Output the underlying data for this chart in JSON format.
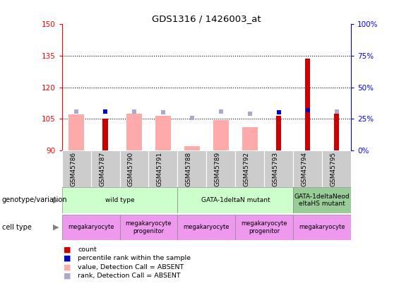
{
  "title": "GDS1316 / 1426003_at",
  "samples": [
    "GSM45786",
    "GSM45787",
    "GSM45790",
    "GSM45791",
    "GSM45788",
    "GSM45789",
    "GSM45792",
    "GSM45793",
    "GSM45794",
    "GSM45795"
  ],
  "count_values": [
    null,
    105.0,
    null,
    null,
    null,
    null,
    null,
    106.5,
    133.5,
    107.5
  ],
  "pct_rank_values": [
    null,
    108.5,
    null,
    null,
    null,
    null,
    null,
    108.0,
    109.0,
    null
  ],
  "absent_value": [
    107.0,
    null,
    107.5,
    106.5,
    92.0,
    104.5,
    101.0,
    null,
    null,
    null
  ],
  "absent_rank": [
    108.5,
    null,
    108.5,
    108.0,
    105.5,
    108.5,
    107.5,
    null,
    null,
    108.5
  ],
  "ylim": [
    90,
    150
  ],
  "yticks_left": [
    90,
    105,
    120,
    135,
    150
  ],
  "yticks_right_pct": [
    0,
    25,
    50,
    75,
    100
  ],
  "genotype_groups": [
    {
      "label": "wild type",
      "start": 0,
      "end": 4,
      "color": "#ccffcc"
    },
    {
      "label": "GATA-1deltaN mutant",
      "start": 4,
      "end": 8,
      "color": "#ccffcc"
    },
    {
      "label": "GATA-1deltaNeod\neltaHS mutant",
      "start": 8,
      "end": 10,
      "color": "#99cc99"
    }
  ],
  "cell_groups": [
    {
      "label": "megakaryocyte",
      "start": 0,
      "end": 2,
      "color": "#ee99ee"
    },
    {
      "label": "megakaryocyte\nprogenitor",
      "start": 2,
      "end": 4,
      "color": "#ee99ee"
    },
    {
      "label": "megakaryocyte",
      "start": 4,
      "end": 6,
      "color": "#ee99ee"
    },
    {
      "label": "megakaryocyte\nprogenitor",
      "start": 6,
      "end": 8,
      "color": "#ee99ee"
    },
    {
      "label": "megakaryocyte",
      "start": 8,
      "end": 10,
      "color": "#ee99ee"
    }
  ],
  "color_count": "#cc0000",
  "color_pct": "#0000cc",
  "color_absent_val": "#ffaaaa",
  "color_absent_rank": "#aaaacc",
  "sample_bg": "#cccccc",
  "absent_bar_width": 0.55,
  "count_bar_width": 0.18
}
